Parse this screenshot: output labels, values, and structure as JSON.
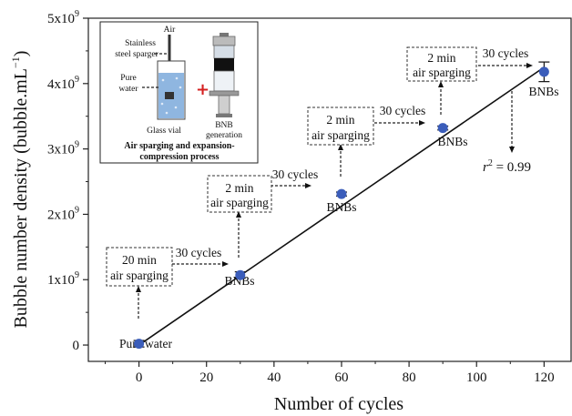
{
  "chart_data": {
    "type": "scatter",
    "title": "",
    "xlabel": "Number of cycles",
    "ylabel": "Bubble number density (bubble.mL",
    "ylabel_sup": "−1",
    "ylabel_close": ")",
    "xlim": [
      -15,
      128
    ],
    "ylim": [
      -250000000,
      5000000000
    ],
    "x_ticks": [
      0,
      20,
      40,
      60,
      80,
      100,
      120
    ],
    "x_tick_labels": [
      "0",
      "20",
      "40",
      "60",
      "80",
      "100",
      "120"
    ],
    "y_ticks": [
      0,
      1000000000,
      2000000000,
      3000000000,
      4000000000,
      5000000000
    ],
    "y_tick_labels": [
      {
        "base": "0",
        "exp": ""
      },
      {
        "base": "1x10",
        "exp": "9"
      },
      {
        "base": "2x10",
        "exp": "9"
      },
      {
        "base": "3x10",
        "exp": "9"
      },
      {
        "base": "4x10",
        "exp": "9"
      },
      {
        "base": "5x10",
        "exp": "9"
      }
    ],
    "points": [
      {
        "x": 0,
        "y": 20000000,
        "err": 50000000
      },
      {
        "x": 30,
        "y": 1070000000,
        "err": 50000000
      },
      {
        "x": 60,
        "y": 2310000000,
        "err": 30000000
      },
      {
        "x": 90,
        "y": 3320000000,
        "err": 30000000
      },
      {
        "x": 120,
        "y": 4180000000,
        "err": 150000000
      }
    ],
    "fit_line": {
      "x": [
        0,
        120
      ],
      "y": [
        0,
        4250000000
      ]
    },
    "point_color": "#3b5dba",
    "r2_label": {
      "r": "r",
      "sup": "2",
      "value": " = 0.99"
    },
    "point_labels": [
      "Pure water",
      "BNBs",
      "BNBs",
      "BNBs",
      "BNBs"
    ],
    "boxes": [
      {
        "line1": "20 min",
        "line2": "air sparging"
      },
      {
        "line1": "2 min",
        "line2": "air sparging"
      },
      {
        "line1": "2 min",
        "line2": "air sparging"
      },
      {
        "line1": "2 min",
        "line2": "air sparging"
      }
    ],
    "cycle_labels": [
      "30 cycles",
      "30 cycles",
      "30 cycles",
      "30 cycles"
    ]
  },
  "inset": {
    "air": "Air",
    "sparger_1": "Stainless",
    "sparger_2": "steel sparger",
    "water_1": "Pure",
    "water_2": "water",
    "vial": "Glass vial",
    "bnb_1": "BNB",
    "bnb_2": "generation",
    "caption_1": "Air sparging and expansion-",
    "caption_2": "compression process",
    "plus_color": "#d42020",
    "water_color": "#8fb6e0"
  }
}
